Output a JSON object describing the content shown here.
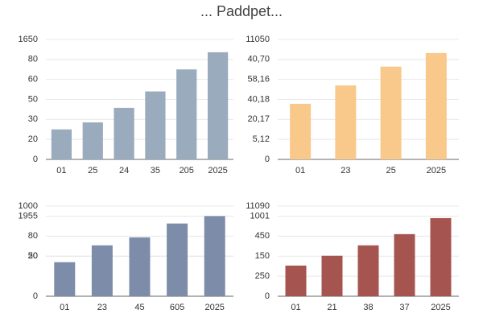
{
  "title": "... Paddpet...",
  "chart_data": [
    {
      "type": "bar",
      "categories": [
        "01",
        "25",
        "24",
        "35",
        "205",
        "2025"
      ],
      "values": [
        15,
        18.5,
        25.8,
        34,
        45,
        53.6
      ],
      "color": "#9aabbd",
      "ylim": [
        0,
        60
      ],
      "yticks": [
        0,
        {
          "value": 10,
          "label": "20"
        },
        {
          "value": 20,
          "label": "30"
        },
        {
          "value": 30,
          "label": "50"
        },
        {
          "value": 40,
          "label": "60"
        },
        {
          "value": 50,
          "label": "80"
        },
        {
          "value": 60,
          "label": "1650"
        }
      ],
      "grid": true
    },
    {
      "type": "bar",
      "categories": [
        "01",
        "23",
        "25",
        "2025"
      ],
      "values": [
        27.8,
        37,
        46.4,
        53.2
      ],
      "color": "#f9c98c",
      "ylim": [
        0,
        60
      ],
      "yticks": [
        0,
        {
          "value": 10,
          "label": "5,12"
        },
        {
          "value": 20,
          "label": "20,17"
        },
        {
          "value": 30,
          "label": "40,18"
        },
        {
          "value": 40,
          "label": "58,16"
        },
        {
          "value": 50,
          "label": "40,70"
        },
        {
          "value": 60,
          "label": "11050"
        }
      ],
      "grid": true
    },
    {
      "type": "bar",
      "categories": [
        "01",
        "23",
        "45",
        "605",
        "2025"
      ],
      "values": [
        17,
        25.4,
        29.4,
        36.3,
        40
      ],
      "color": "#7d8ca8",
      "ylim": [
        0,
        45
      ],
      "yticks": [
        0,
        20,
        {
          "value": 20,
          "label": "50"
        },
        {
          "value": 30,
          "label": "80"
        },
        {
          "value": 40,
          "label": "1955"
        },
        {
          "value": 45,
          "label": "1000"
        }
      ],
      "grid": true
    },
    {
      "type": "bar",
      "categories": [
        "01",
        "21",
        "38",
        "37",
        "2025"
      ],
      "values": [
        15.3,
        20.2,
        25.4,
        31,
        39
      ],
      "color": "#a65450",
      "ylim": [
        0,
        45
      ],
      "yticks": [
        0,
        {
          "value": 10,
          "label": "250"
        },
        {
          "value": 20,
          "label": "150"
        },
        {
          "value": 30,
          "label": "450"
        },
        {
          "value": 40,
          "label": "1001"
        },
        {
          "value": 45,
          "label": "11090"
        }
      ],
      "grid": true
    }
  ]
}
